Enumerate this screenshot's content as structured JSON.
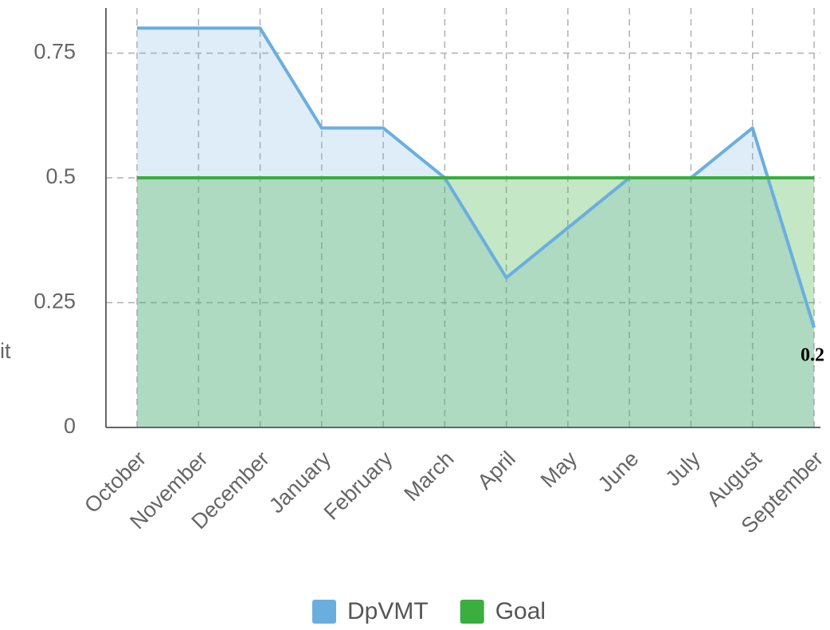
{
  "chart_data": {
    "type": "area",
    "ylabel": "it",
    "categories": [
      "October",
      "November",
      "December",
      "January",
      "February",
      "March",
      "April",
      "May",
      "June",
      "July",
      "August",
      "September"
    ],
    "series": [
      {
        "name": "DpVMT",
        "color": "#6aaee0",
        "values": [
          0.8,
          0.8,
          0.8,
          0.6,
          0.6,
          0.5,
          0.3,
          0.4,
          0.5,
          0.5,
          0.6,
          0.2
        ]
      },
      {
        "name": "Goal",
        "color": "#3aae3f",
        "values": [
          0.5,
          0.5,
          0.5,
          0.5,
          0.5,
          0.5,
          0.5,
          0.5,
          0.5,
          0.5,
          0.5,
          0.5
        ]
      }
    ],
    "data_labels": "last",
    "ylim": [
      0,
      0.85
    ],
    "yticks": [
      0,
      0.25,
      0.5,
      0.75
    ],
    "grid": true,
    "legend": "bottom"
  }
}
